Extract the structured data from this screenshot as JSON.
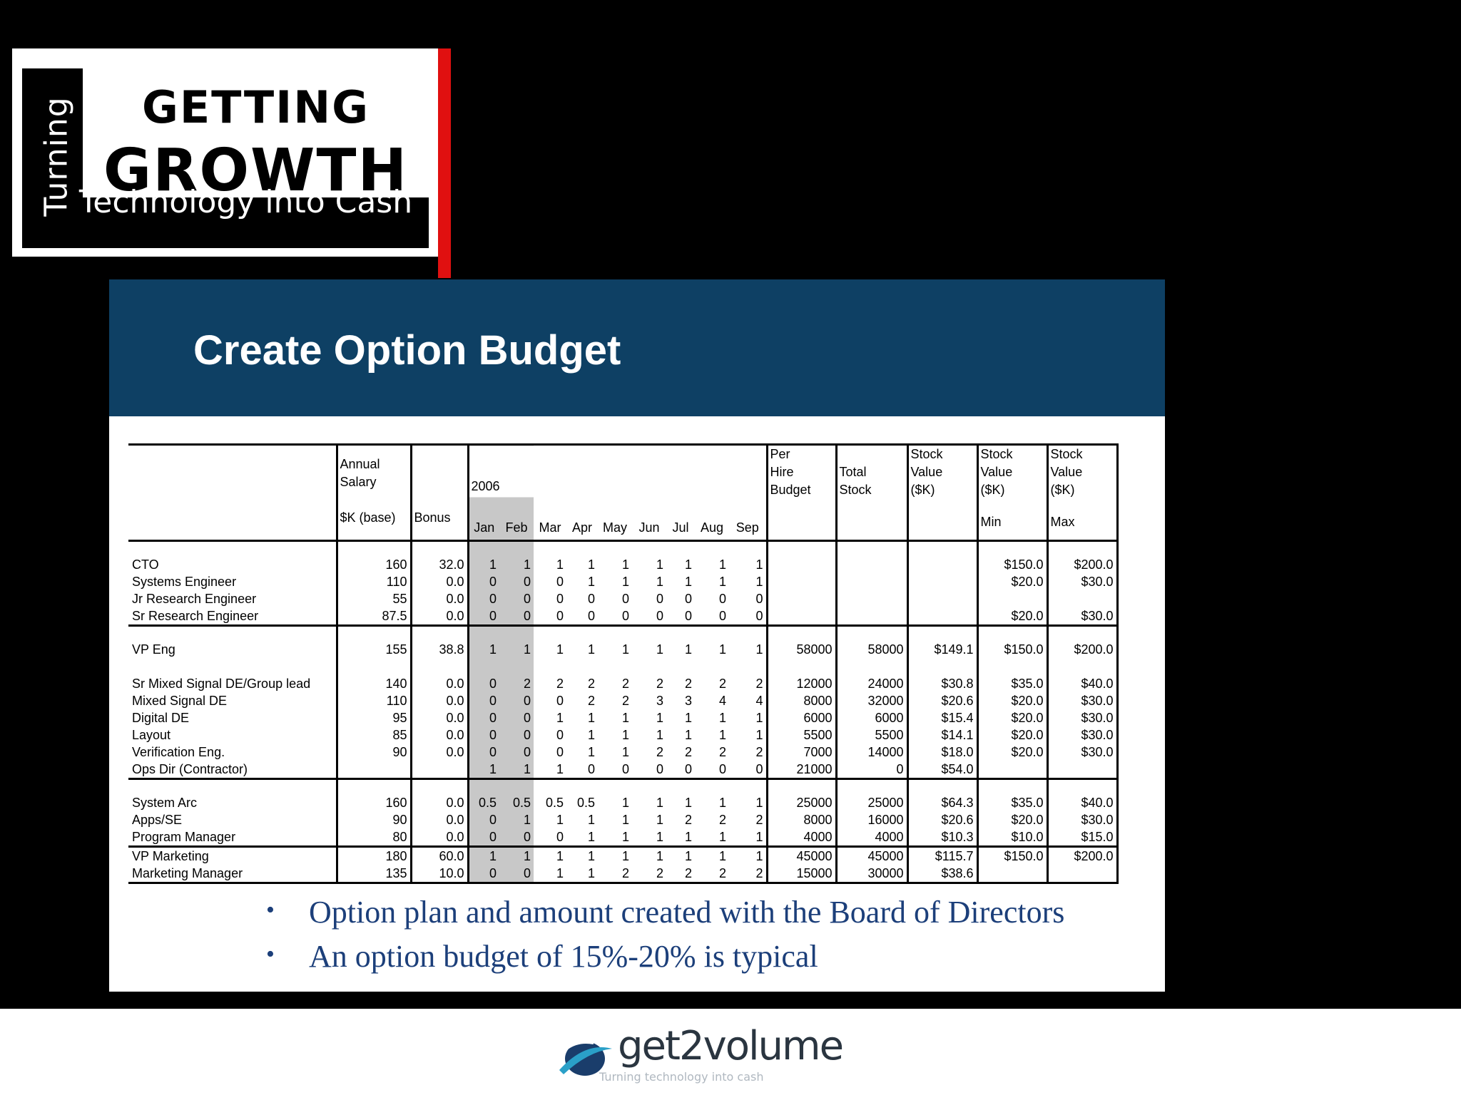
{
  "logo": {
    "turning": "Turning",
    "getting": "GETTING",
    "growth": "GROWTH",
    "tagline": "Technology into Cash"
  },
  "slide": {
    "title": "Create Option Budget",
    "bullets": [
      "Option plan and amount created with the Board of Directors",
      "An option  budget of 15%-20% is typical"
    ]
  },
  "table": {
    "header": {
      "salary": [
        "Annual",
        "Salary",
        "",
        "$K (base)"
      ],
      "bonus": "Bonus",
      "year": "2006",
      "months": [
        "Jan",
        "Feb",
        "Mar",
        "Apr",
        "May",
        "Jun",
        "Jul",
        "Aug",
        "Sep"
      ],
      "per_hire": [
        "Per",
        "Hire",
        "Budget"
      ],
      "total_stock": [
        "",
        "Total",
        "Stock"
      ],
      "stock_value": [
        "Stock",
        "Value",
        "($K)"
      ],
      "stock_min": [
        "Stock",
        "Value",
        "($K)",
        "Min"
      ],
      "stock_max": [
        "Stock",
        "Value",
        "($K)",
        "Max"
      ]
    },
    "groups": [
      [
        [
          "CTO",
          "160",
          "32.0",
          "1",
          "1",
          "1",
          "1",
          "1",
          "1",
          "1",
          "1",
          "1",
          "",
          "",
          "",
          "$150.0",
          "$200.0"
        ],
        [
          "Systems Engineer",
          "110",
          "0.0",
          "0",
          "0",
          "0",
          "1",
          "1",
          "1",
          "1",
          "1",
          "1",
          "",
          "",
          "",
          "$20.0",
          "$30.0"
        ],
        [
          "Jr Research Engineer",
          "55",
          "0.0",
          "0",
          "0",
          "0",
          "0",
          "0",
          "0",
          "0",
          "0",
          "0",
          "",
          "",
          "",
          "",
          ""
        ],
        [
          "Sr Research Engineer",
          "87.5",
          "0.0",
          "0",
          "0",
          "0",
          "0",
          "0",
          "0",
          "0",
          "0",
          "0",
          "",
          "",
          "",
          "$20.0",
          "$30.0"
        ]
      ],
      [
        [
          "VP Eng",
          "155",
          "38.8",
          "1",
          "1",
          "1",
          "1",
          "1",
          "1",
          "1",
          "1",
          "1",
          "58000",
          "58000",
          "$149.1",
          "$150.0",
          "$200.0"
        ],
        [
          "",
          "",
          "",
          "",
          "",
          "",
          "",
          "",
          "",
          "",
          "",
          "",
          "",
          "",
          "",
          "",
          ""
        ],
        [
          "Sr Mixed Signal DE/Group lead",
          "140",
          "0.0",
          "0",
          "2",
          "2",
          "2",
          "2",
          "2",
          "2",
          "2",
          "2",
          "12000",
          "24000",
          "$30.8",
          "$35.0",
          "$40.0"
        ],
        [
          "Mixed Signal DE",
          "110",
          "0.0",
          "0",
          "0",
          "0",
          "2",
          "2",
          "3",
          "3",
          "4",
          "4",
          "8000",
          "32000",
          "$20.6",
          "$20.0",
          "$30.0"
        ],
        [
          "Digital DE",
          "95",
          "0.0",
          "0",
          "0",
          "1",
          "1",
          "1",
          "1",
          "1",
          "1",
          "1",
          "6000",
          "6000",
          "$15.4",
          "$20.0",
          "$30.0"
        ],
        [
          "Layout",
          "85",
          "0.0",
          "0",
          "0",
          "0",
          "1",
          "1",
          "1",
          "1",
          "1",
          "1",
          "5500",
          "5500",
          "$14.1",
          "$20.0",
          "$30.0"
        ],
        [
          "Verification Eng.",
          "90",
          "0.0",
          "0",
          "0",
          "0",
          "1",
          "1",
          "2",
          "2",
          "2",
          "2",
          "7000",
          "14000",
          "$18.0",
          "$20.0",
          "$30.0"
        ],
        [
          "Ops Dir (Contractor)",
          "",
          "",
          "1",
          "1",
          "1",
          "0",
          "0",
          "0",
          "0",
          "0",
          "0",
          "21000",
          "0",
          "$54.0",
          "",
          ""
        ]
      ],
      [
        [
          "System Arc",
          "160",
          "0.0",
          "0.5",
          "0.5",
          "0.5",
          "0.5",
          "1",
          "1",
          "1",
          "1",
          "1",
          "25000",
          "25000",
          "$64.3",
          "$35.0",
          "$40.0"
        ],
        [
          "Apps/SE",
          "90",
          "0.0",
          "0",
          "1",
          "1",
          "1",
          "1",
          "1",
          "2",
          "2",
          "2",
          "8000",
          "16000",
          "$20.6",
          "$20.0",
          "$30.0"
        ],
        [
          "Program Manager",
          "80",
          "0.0",
          "0",
          "0",
          "0",
          "1",
          "1",
          "1",
          "1",
          "1",
          "1",
          "4000",
          "4000",
          "$10.3",
          "$10.0",
          "$15.0"
        ]
      ],
      [
        [
          "VP Marketing",
          "180",
          "60.0",
          "1",
          "1",
          "1",
          "1",
          "1",
          "1",
          "1",
          "1",
          "1",
          "45000",
          "45000",
          "$115.7",
          "$150.0",
          "$200.0"
        ],
        [
          "Marketing Manager",
          "135",
          "10.0",
          "0",
          "0",
          "1",
          "1",
          "2",
          "2",
          "2",
          "2",
          "2",
          "15000",
          "30000",
          "$38.6",
          "",
          ""
        ]
      ]
    ]
  },
  "footer": {
    "brand": "get2volume",
    "tagline": "Turning technology into cash"
  },
  "colors": {
    "header_blue": "#0e4064",
    "bullet_blue": "#1c3f7a",
    "logo_red": "#e01010",
    "shade_gray": "#c8c8c8"
  }
}
